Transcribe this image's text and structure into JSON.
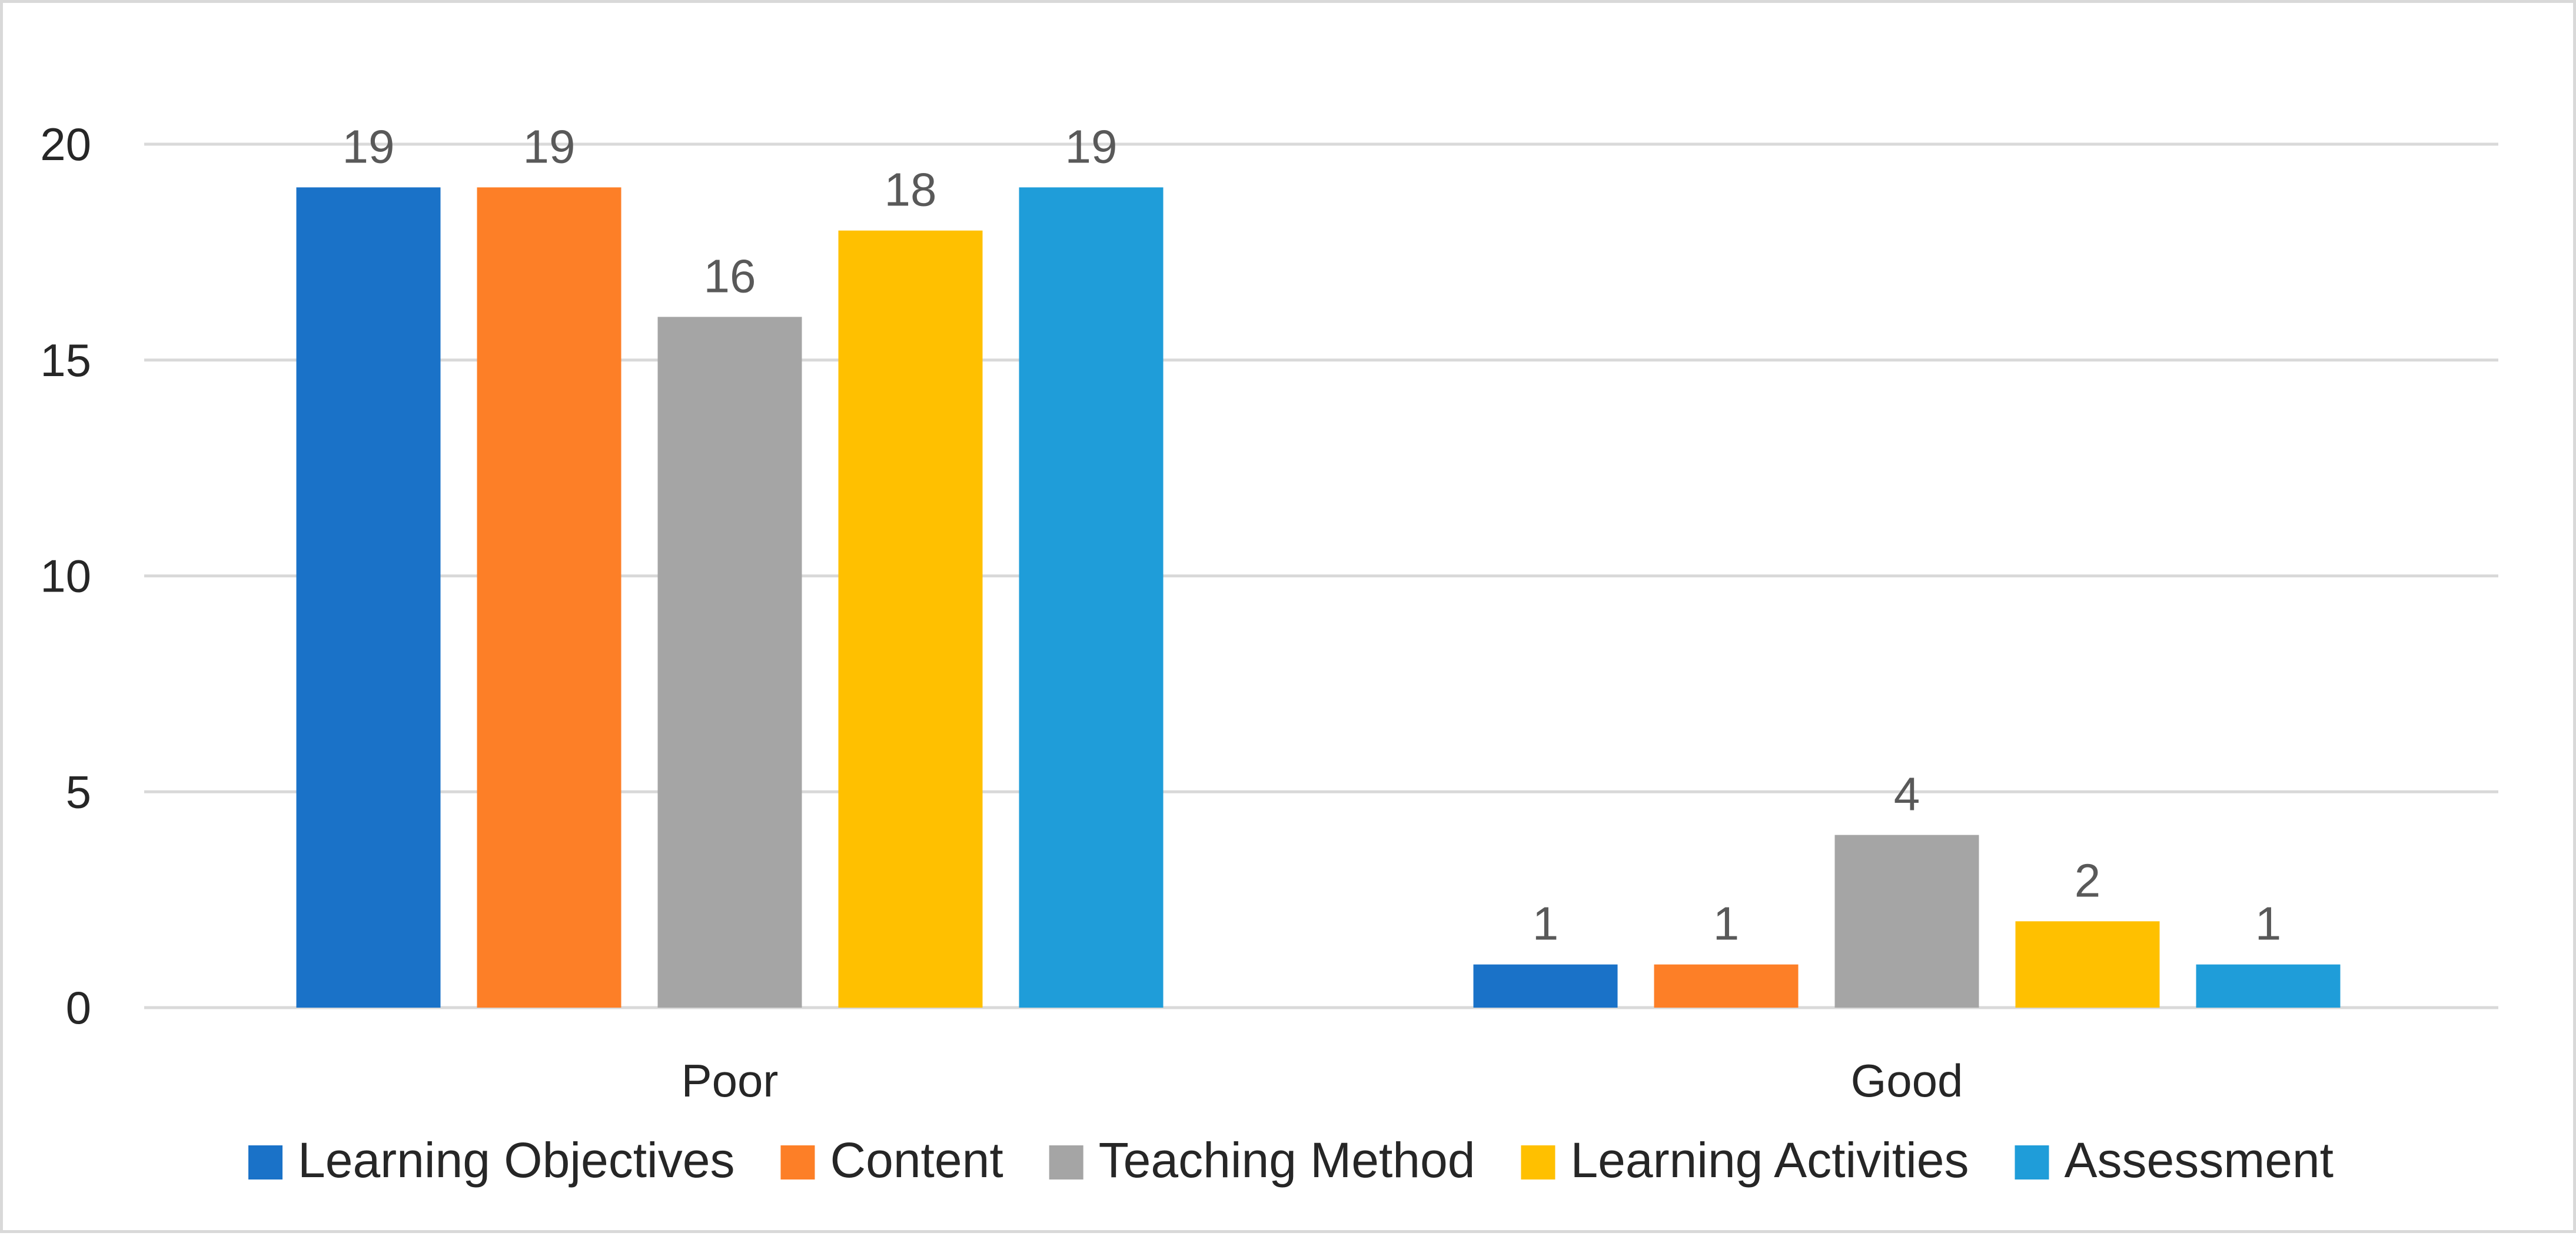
{
  "chart_data": {
    "type": "bar",
    "categories": [
      "Poor",
      "Good"
    ],
    "series": [
      {
        "name": "Learning Objectives",
        "values": [
          19,
          1
        ],
        "color": "#1a72c8"
      },
      {
        "name": "Content",
        "values": [
          19,
          1
        ],
        "color": "#fd7f27"
      },
      {
        "name": "Teaching Method",
        "values": [
          16,
          4
        ],
        "color": "#a5a5a5"
      },
      {
        "name": "Learning Activities",
        "values": [
          18,
          2
        ],
        "color": "#ffc000"
      },
      {
        "name": "Assessment",
        "values": [
          19,
          1
        ],
        "color": "#1f9dd9"
      }
    ],
    "title": "",
    "xlabel": "",
    "ylabel": "",
    "ylim": [
      0,
      20
    ],
    "yticks": [
      "0",
      "5",
      "10",
      "15",
      "20"
    ],
    "grid": true,
    "legend_position": "bottom",
    "data_labels": true
  }
}
